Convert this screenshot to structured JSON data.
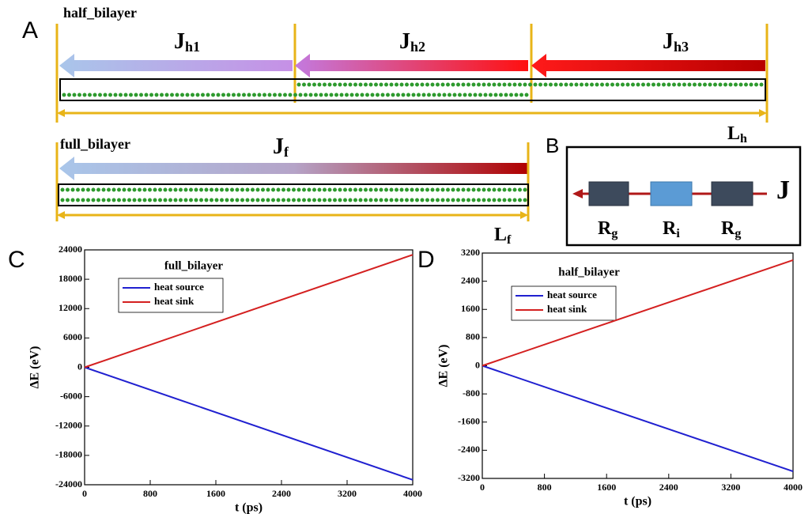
{
  "panel_labels": [
    "A",
    "B",
    "C",
    "D"
  ],
  "diagram_a": {
    "half": {
      "label": "half_bilayer",
      "fluxes": [
        {
          "main": "J",
          "sub": "h1"
        },
        {
          "main": "J",
          "sub": "h2"
        },
        {
          "main": "J",
          "sub": "h3"
        }
      ],
      "length": {
        "main": "L",
        "sub": "h"
      }
    },
    "full": {
      "label": "full_bilayer",
      "flux": {
        "main": "J",
        "sub": "f"
      },
      "length": {
        "main": "L",
        "sub": "f"
      }
    }
  },
  "diagram_b": {
    "resistors": [
      {
        "main": "R",
        "sub": "g"
      },
      {
        "main": "R",
        "sub": "i"
      },
      {
        "main": "R",
        "sub": "g"
      }
    ],
    "flux": "J"
  },
  "chart_data": [
    {
      "type": "line",
      "title": "full_bilayer",
      "x_label": "t (ps)",
      "y_label": "ΔE (eV)",
      "x": [
        0,
        4000
      ],
      "xlim": [
        0,
        4000
      ],
      "xticks": [
        0,
        800,
        1600,
        2400,
        3200,
        4000
      ],
      "ylim": [
        -24000,
        24000
      ],
      "yticks": [
        -24000,
        -18000,
        -12000,
        -6000,
        0,
        6000,
        12000,
        18000,
        24000
      ],
      "series": [
        {
          "name": "heat source",
          "color": "#2020d0",
          "values": [
            0,
            -23000
          ]
        },
        {
          "name": "heat sink",
          "color": "#d42020",
          "values": [
            0,
            23000
          ]
        }
      ]
    },
    {
      "type": "line",
      "title": "half_bilayer",
      "x_label": "t (ps)",
      "y_label": "ΔE (eV)",
      "x": [
        0,
        4000
      ],
      "xlim": [
        0,
        4000
      ],
      "xticks": [
        0,
        800,
        1600,
        2400,
        3200,
        4000
      ],
      "ylim": [
        -3200,
        3200
      ],
      "yticks": [
        -3200,
        -2400,
        -1600,
        -800,
        0,
        800,
        1600,
        2400,
        3200
      ],
      "series": [
        {
          "name": "heat source",
          "color": "#2020d0",
          "values": [
            0,
            -3000
          ]
        },
        {
          "name": "heat sink",
          "color": "#d42020",
          "values": [
            0,
            3000
          ]
        }
      ]
    }
  ]
}
